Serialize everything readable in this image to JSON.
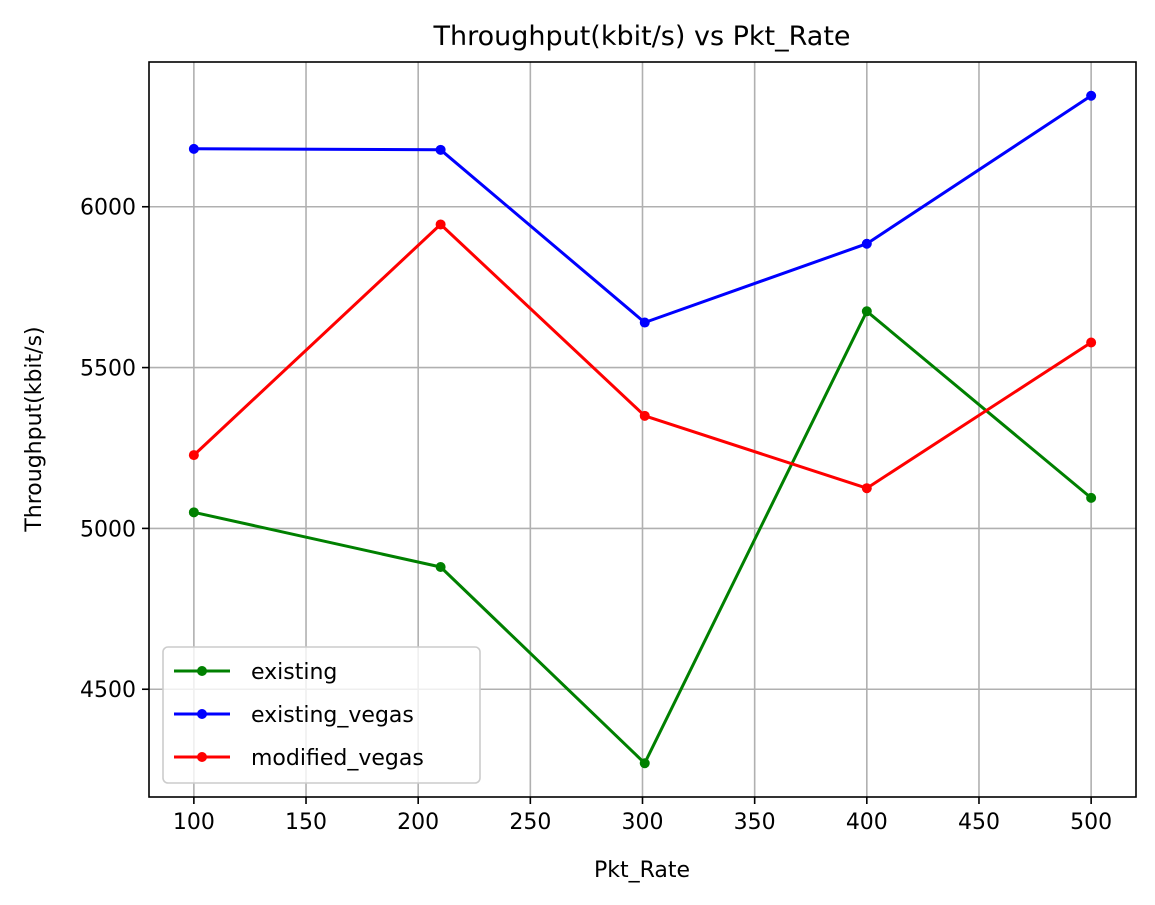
{
  "chart_data": {
    "type": "line",
    "title": "Throughput(kbit/s) vs Pkt_Rate",
    "xlabel": "Pkt_Rate",
    "ylabel": "Throughput(kbit/s)",
    "xlim": [
      80,
      520
    ],
    "ylim": [
      4165,
      6450
    ],
    "xticks": [
      100,
      150,
      200,
      250,
      300,
      350,
      400,
      450,
      500
    ],
    "yticks": [
      4500,
      5000,
      5500,
      6000
    ],
    "grid": true,
    "legend_position": "lower-left",
    "series": [
      {
        "name": "existing",
        "color": "#008000",
        "x": [
          100,
          210,
          301,
          400,
          500
        ],
        "y": [
          5050,
          4880,
          4270,
          5675,
          5095
        ]
      },
      {
        "name": "existing_vegas",
        "color": "#0000ff",
        "x": [
          100,
          210,
          301,
          400,
          500
        ],
        "y": [
          6180,
          6177,
          5640,
          5885,
          6345
        ]
      },
      {
        "name": "modified_vegas",
        "color": "#ff0000",
        "x": [
          100,
          210,
          301,
          400,
          500
        ],
        "y": [
          5228,
          5945,
          5350,
          5125,
          5578
        ]
      }
    ]
  }
}
